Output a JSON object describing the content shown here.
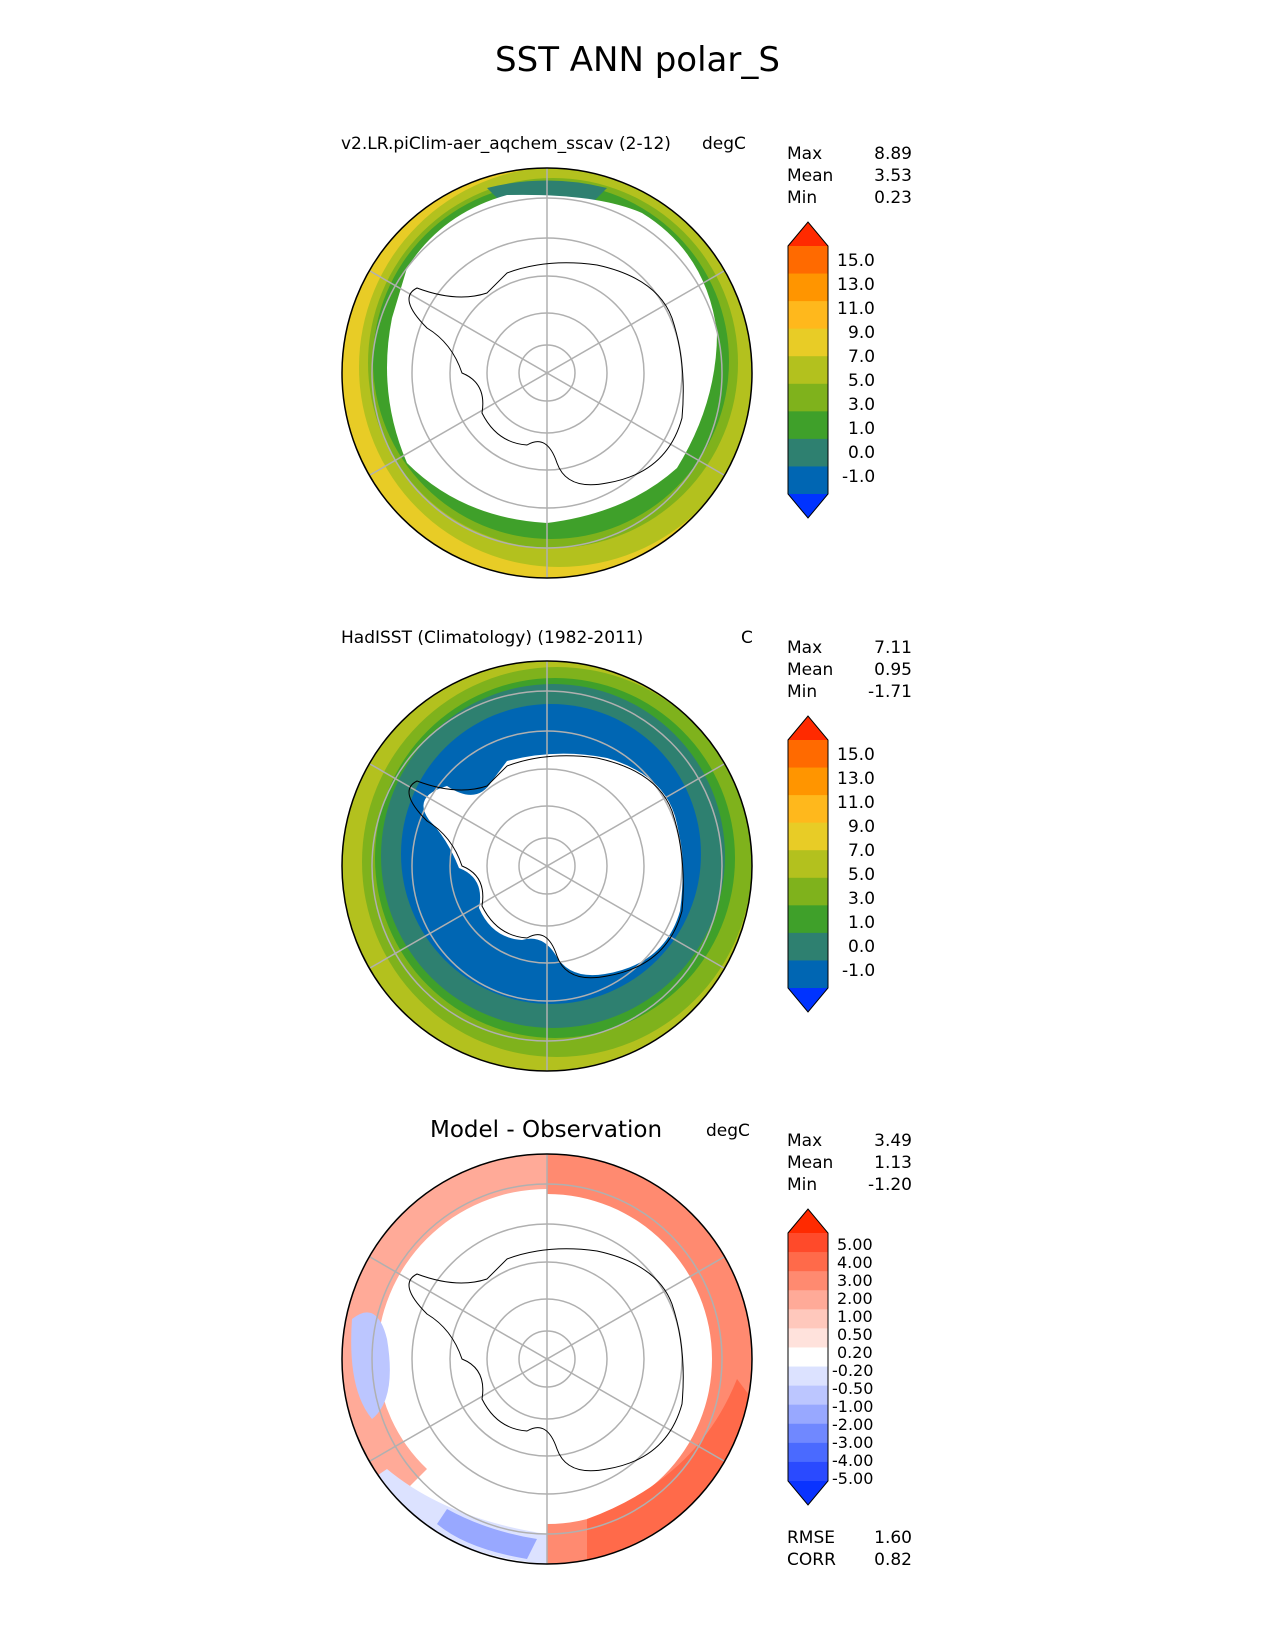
{
  "title": "SST ANN polar_S",
  "panels": [
    {
      "title": "v2.LR.piClim-aer_aqchem_sscav (2-12)",
      "units": "degC",
      "stats": [
        {
          "label": "Max",
          "value": "8.89"
        },
        {
          "label": "Mean",
          "value": "3.53"
        },
        {
          "label": "Min",
          "value": "0.23"
        }
      ],
      "colorbar": {
        "labels": [
          "15.0",
          "13.0",
          "11.0",
          "9.0",
          "7.0",
          "5.0",
          "3.0",
          "1.0",
          "0.0",
          "-1.0"
        ],
        "colors": [
          "#ff2a00",
          "#ff6a00",
          "#ff9500",
          "#ffb81c",
          "#e8cc26",
          "#b3c11e",
          "#7fb21c",
          "#3fa02a",
          "#2e8070",
          "#0066b3",
          "#0033ff"
        ]
      }
    },
    {
      "title": "HadISST (Climatology) (1982-2011)",
      "units": "C",
      "stats": [
        {
          "label": "Max",
          "value": "7.11"
        },
        {
          "label": "Mean",
          "value": "0.95"
        },
        {
          "label": "Min",
          "value": "-1.71"
        }
      ],
      "colorbar": {
        "labels": [
          "15.0",
          "13.0",
          "11.0",
          "9.0",
          "7.0",
          "5.0",
          "3.0",
          "1.0",
          "0.0",
          "-1.0"
        ],
        "colors": [
          "#ff2a00",
          "#ff6a00",
          "#ff9500",
          "#ffb81c",
          "#e8cc26",
          "#b3c11e",
          "#7fb21c",
          "#3fa02a",
          "#2e8070",
          "#0066b3",
          "#0033ff"
        ]
      }
    },
    {
      "title": "Model - Observation",
      "units": "degC",
      "stats": [
        {
          "label": "Max",
          "value": "3.49"
        },
        {
          "label": "Mean",
          "value": "1.13"
        },
        {
          "label": "Min",
          "value": "-1.20"
        }
      ],
      "colorbar": {
        "labels": [
          "5.00",
          "4.00",
          "3.00",
          "2.00",
          "1.00",
          "0.50",
          "0.20",
          "-0.20",
          "-0.50",
          "-1.00",
          "-2.00",
          "-3.00",
          "-4.00",
          "-5.00"
        ],
        "colors": [
          "#ff2a00",
          "#ff4a2a",
          "#ff6a4a",
          "#ff8a70",
          "#ffaa98",
          "#ffc8bc",
          "#ffe2dc",
          "#ffffff",
          "#dce2ff",
          "#bcc6ff",
          "#98a8ff",
          "#7088ff",
          "#4a6aff",
          "#2a4aff",
          "#0a33ff"
        ]
      },
      "extra_stats": [
        {
          "label": "RMSE",
          "value": "1.60"
        },
        {
          "label": "CORR",
          "value": "0.82"
        }
      ]
    }
  ],
  "chart_data": [
    {
      "type": "heatmap",
      "projection": "south polar stereographic",
      "title": "v2.LR.piClim-aer_aqchem_sscav (2-12)",
      "units": "degC",
      "max": 8.89,
      "mean": 3.53,
      "min": 0.23,
      "levels": [
        -1.0,
        0.0,
        1.0,
        3.0,
        5.0,
        7.0,
        9.0,
        11.0,
        13.0,
        15.0
      ]
    },
    {
      "type": "heatmap",
      "projection": "south polar stereographic",
      "title": "HadISST (Climatology) (1982-2011)",
      "units": "C",
      "max": 7.11,
      "mean": 0.95,
      "min": -1.71,
      "levels": [
        -1.0,
        0.0,
        1.0,
        3.0,
        5.0,
        7.0,
        9.0,
        11.0,
        13.0,
        15.0
      ]
    },
    {
      "type": "heatmap",
      "projection": "south polar stereographic",
      "title": "Model - Observation",
      "units": "degC",
      "max": 3.49,
      "mean": 1.13,
      "min": -1.2,
      "rmse": 1.6,
      "corr": 0.82,
      "levels": [
        -5.0,
        -4.0,
        -3.0,
        -2.0,
        -1.0,
        -0.5,
        -0.2,
        0.2,
        0.5,
        1.0,
        2.0,
        3.0,
        4.0,
        5.0
      ]
    }
  ]
}
